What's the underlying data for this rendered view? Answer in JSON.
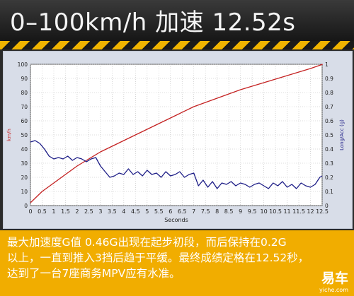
{
  "header": {
    "title": "0–100km/h 加速 12.52s"
  },
  "caption": {
    "lines": [
      "最大加速度G值 0.46G出现在起步初段，而后保持在0.2G",
      "以上，一直到推入3挡后趋于平缓。最终成绩定格在12.52秒，",
      "达到了一台7座商务MPV应有水准。"
    ]
  },
  "logo": {
    "name": "易车",
    "url_text": "yiche.com"
  },
  "colors": {
    "speed_line": "#c42222",
    "accel_line": "#1c1c86",
    "plot_bg": "#ffffff",
    "panel_bg": "#d8dde8",
    "accent": "#f1ad00"
  },
  "chart_data": {
    "type": "line",
    "xlabel": "Seconds",
    "ylabel_left": "km/h",
    "ylabel_right": "Long/Acc (g)",
    "xlim": [
      0,
      12.5
    ],
    "ylim_left": [
      0,
      100
    ],
    "ylim_right": [
      0,
      1
    ],
    "x_ticks": [
      "0",
      "0.5",
      "1",
      "1.5",
      "2",
      "2.5",
      "3",
      "3.5",
      "4",
      "4.5",
      "5",
      "5.5",
      "6",
      "6.5",
      "7",
      "7.5",
      "8",
      "8.5",
      "9",
      "9.5",
      "10",
      "10.5",
      "11",
      "11.5",
      "12",
      "12.5"
    ],
    "y_ticks_left": [
      "0",
      "10",
      "20",
      "30",
      "40",
      "50",
      "60",
      "70",
      "80",
      "90",
      "100"
    ],
    "y_ticks_right": [
      "0",
      "0.1",
      "0.2",
      "0.3",
      "0.4",
      "0.5",
      "0.6",
      "0.7",
      "0.8",
      "0.9",
      "1"
    ],
    "grid": true,
    "series": [
      {
        "name": "km/h",
        "axis": "left",
        "x": [
          0,
          0.5,
          1,
          1.5,
          2,
          2.5,
          3,
          3.5,
          4,
          5,
          6,
          7,
          8,
          9,
          10,
          11,
          12,
          12.52
        ],
        "values": [
          2,
          10,
          16,
          22,
          28,
          33,
          38,
          42,
          46,
          54,
          62,
          70,
          76,
          82,
          87,
          92,
          97,
          100
        ]
      },
      {
        "name": "Long/Acc (g)",
        "axis": "right",
        "x": [
          0,
          0.2,
          0.4,
          0.6,
          0.8,
          1,
          1.2,
          1.4,
          1.6,
          1.8,
          2,
          2.2,
          2.4,
          2.6,
          2.8,
          3,
          3.2,
          3.4,
          3.6,
          3.8,
          4,
          4.2,
          4.4,
          4.6,
          4.8,
          5,
          5.2,
          5.4,
          5.6,
          5.8,
          6,
          6.2,
          6.4,
          6.6,
          6.8,
          7,
          7.2,
          7.4,
          7.6,
          7.8,
          8,
          8.2,
          8.4,
          8.6,
          8.8,
          9,
          9.2,
          9.4,
          9.6,
          9.8,
          10,
          10.2,
          10.4,
          10.6,
          10.8,
          11,
          11.2,
          11.4,
          11.6,
          11.8,
          12,
          12.2,
          12.4,
          12.5
        ],
        "values": [
          0.45,
          0.46,
          0.44,
          0.4,
          0.35,
          0.33,
          0.34,
          0.33,
          0.35,
          0.32,
          0.34,
          0.33,
          0.31,
          0.33,
          0.34,
          0.28,
          0.24,
          0.2,
          0.21,
          0.23,
          0.22,
          0.26,
          0.22,
          0.24,
          0.21,
          0.25,
          0.22,
          0.23,
          0.2,
          0.24,
          0.21,
          0.22,
          0.24,
          0.2,
          0.22,
          0.23,
          0.14,
          0.18,
          0.13,
          0.17,
          0.12,
          0.16,
          0.15,
          0.17,
          0.14,
          0.16,
          0.15,
          0.13,
          0.15,
          0.16,
          0.14,
          0.12,
          0.16,
          0.14,
          0.17,
          0.13,
          0.15,
          0.12,
          0.16,
          0.14,
          0.13,
          0.15,
          0.2,
          0.21
        ]
      }
    ]
  }
}
